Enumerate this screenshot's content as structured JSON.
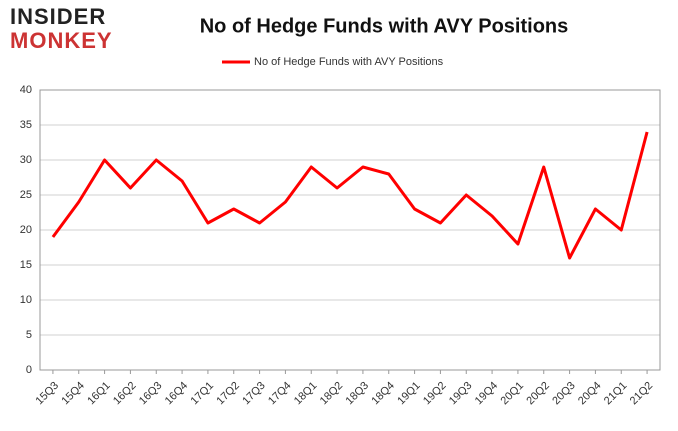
{
  "logo": {
    "line1": "INSIDER",
    "line2": "MONKEY"
  },
  "chart_data": {
    "type": "line",
    "title": "No of Hedge Funds with AVY Positions",
    "categories": [
      "15Q3",
      "15Q4",
      "16Q1",
      "16Q2",
      "16Q3",
      "16Q4",
      "17Q1",
      "17Q2",
      "17Q3",
      "17Q4",
      "18Q1",
      "18Q2",
      "18Q3",
      "18Q4",
      "19Q1",
      "19Q2",
      "19Q3",
      "19Q4",
      "20Q1",
      "20Q2",
      "20Q3",
      "20Q4",
      "21Q1",
      "21Q2"
    ],
    "series": [
      {
        "name": "No of Hedge Funds with AVY Positions",
        "color": "#ff0000",
        "values": [
          19,
          24,
          30,
          26,
          30,
          27,
          21,
          23,
          21,
          24,
          29,
          26,
          29,
          28,
          23,
          21,
          25,
          22,
          18,
          29,
          16,
          23,
          20,
          34
        ]
      }
    ],
    "ylim": [
      0,
      40
    ],
    "yticks": [
      0,
      5,
      10,
      15,
      20,
      25,
      30,
      35,
      40
    ],
    "grid": true,
    "legend": "top"
  }
}
